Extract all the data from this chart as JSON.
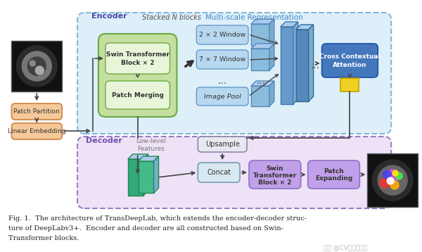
{
  "bg_color": "#ffffff",
  "fig_caption_line1": "Fig. 1.  The architecture of TransDeepLab, which extends the encoder-decoder struc-",
  "fig_caption_line2": "ture of DeepLabv3+.  Encoder and decoder are all constructed based on Swin-",
  "fig_caption_line3": "Transformer blocks.",
  "encoder_label": "Encoder",
  "decoder_label": "Decoder",
  "stacked_label": "Stacked N blocks",
  "multiscale_label": "Multi-scale Representation",
  "lowlevel_label": "Low-level\nFeatures",
  "watermark": "知乎 @CV计算机视觉"
}
